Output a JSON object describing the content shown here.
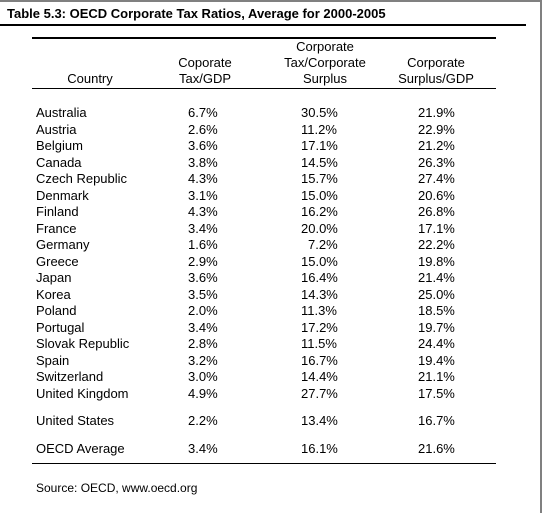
{
  "title": "Table 5.3:  OECD Corporate Tax Ratios, Average for 2000-2005",
  "headers": {
    "country": "Country",
    "col1": [
      "Coporate",
      "Tax/GDP"
    ],
    "col2": [
      "Corporate",
      "Tax/Corporate",
      "Surplus"
    ],
    "col3": [
      "Corporate",
      "Surplus/GDP"
    ]
  },
  "rows": [
    [
      "Australia",
      "6.7%",
      "30.5%",
      "21.9%"
    ],
    [
      "Austria",
      "2.6%",
      "11.2%",
      "22.9%"
    ],
    [
      "Belgium",
      "3.6%",
      "17.1%",
      "21.2%"
    ],
    [
      "Canada",
      "3.8%",
      "14.5%",
      "26.3%"
    ],
    [
      "Czech Republic",
      "4.3%",
      "15.7%",
      "27.4%"
    ],
    [
      "Denmark",
      "3.1%",
      "15.0%",
      "20.6%"
    ],
    [
      "Finland",
      "4.3%",
      "16.2%",
      "26.8%"
    ],
    [
      "France",
      "3.4%",
      "20.0%",
      "17.1%"
    ],
    [
      "Germany",
      "1.6%",
      "7.2%",
      "22.2%"
    ],
    [
      "Greece",
      "2.9%",
      "15.0%",
      "19.8%"
    ],
    [
      "Japan",
      "3.6%",
      "16.4%",
      "21.4%"
    ],
    [
      "Korea",
      "3.5%",
      "14.3%",
      "25.0%"
    ],
    [
      "Poland",
      "2.0%",
      "11.3%",
      "18.5%"
    ],
    [
      "Portugal",
      "3.4%",
      "17.2%",
      "19.7%"
    ],
    [
      "Slovak Republic",
      "2.8%",
      "11.5%",
      "24.4%"
    ],
    [
      "Spain",
      "3.2%",
      "16.7%",
      "19.4%"
    ],
    [
      "Switzerland",
      "3.0%",
      "14.4%",
      "21.1%"
    ],
    [
      "United Kingdom",
      "4.9%",
      "27.7%",
      "17.5%"
    ]
  ],
  "united_states": [
    "United States",
    "2.2%",
    "13.4%",
    "16.7%"
  ],
  "oecd_average": [
    "OECD Average",
    "3.4%",
    "16.1%",
    "21.6%"
  ],
  "source": "Source:  OECD, www.oecd.org"
}
